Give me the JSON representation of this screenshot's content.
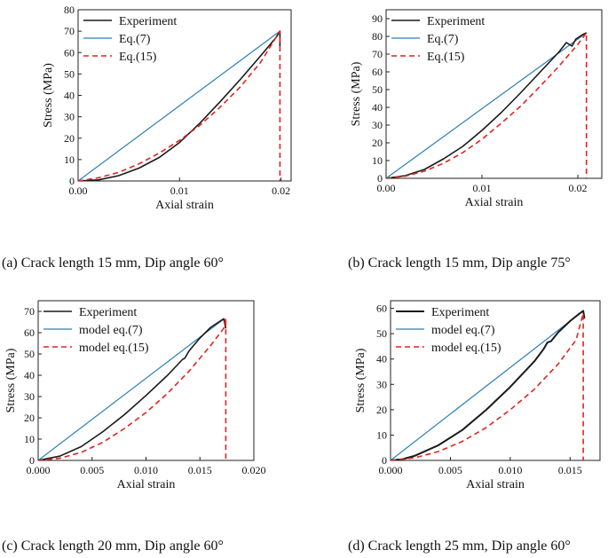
{
  "chart_data": [
    {
      "id": "a",
      "type": "line",
      "caption": "(a) Crack length 15 mm, Dip angle 60°",
      "xlabel": "Axial strain",
      "ylabel": "Stress (MPa)",
      "xlim": [
        0,
        0.021
      ],
      "ylim": [
        0,
        80
      ],
      "xticks": [
        0,
        0.01,
        0.02
      ],
      "xtick_labels": [
        "0.00",
        "0.01",
        "0.02"
      ],
      "yticks": [
        0,
        10,
        20,
        30,
        40,
        50,
        60,
        70,
        80
      ],
      "ytick_labels": [
        "0",
        "10",
        "20",
        "30",
        "40",
        "50",
        "60",
        "70",
        "80"
      ],
      "legend_position": "top-left",
      "series": [
        {
          "name": "Experiment",
          "color": "#1a1a1a",
          "style": "solid",
          "width": 1.6,
          "x": [
            0,
            0.002,
            0.004,
            0.006,
            0.008,
            0.01,
            0.012,
            0.014,
            0.016,
            0.018,
            0.0195,
            0.0199,
            0.0199
          ],
          "y": [
            0,
            0.5,
            2.5,
            6,
            11,
            18,
            27,
            37,
            47.5,
            58.5,
            67,
            70,
            63
          ]
        },
        {
          "name": "Eq.(7)",
          "color": "#2b7fb8",
          "style": "solid",
          "width": 1.2,
          "x": [
            0,
            0.0199
          ],
          "y": [
            0,
            70
          ]
        },
        {
          "name": "Eq.(15)",
          "color": "#e0241f",
          "style": "dashed",
          "width": 1.6,
          "x": [
            0,
            0.002,
            0.004,
            0.006,
            0.008,
            0.01,
            0.012,
            0.014,
            0.016,
            0.018,
            0.0199,
            0.0199
          ],
          "y": [
            0,
            1.5,
            4,
            8,
            13,
            19,
            26,
            34.5,
            44,
            55.5,
            70,
            0
          ]
        }
      ]
    },
    {
      "id": "b",
      "type": "line",
      "caption": "(b) Crack length 15 mm, Dip angle 75°",
      "xlabel": "Axial strain",
      "ylabel": "Stress (MPa)",
      "xlim": [
        0,
        0.0225
      ],
      "ylim": [
        0,
        95
      ],
      "xticks": [
        0,
        0.01,
        0.02
      ],
      "xtick_labels": [
        "0.00",
        "0.01",
        "0.02"
      ],
      "yticks": [
        0,
        10,
        20,
        30,
        40,
        50,
        60,
        70,
        80,
        90
      ],
      "ytick_labels": [
        "0",
        "10",
        "20",
        "30",
        "40",
        "50",
        "60",
        "70",
        "80",
        "90"
      ],
      "legend_position": "top-left",
      "series": [
        {
          "name": "Experiment",
          "color": "#1a1a1a",
          "style": "solid",
          "width": 1.6,
          "x": [
            0,
            0.002,
            0.004,
            0.006,
            0.008,
            0.01,
            0.012,
            0.014,
            0.016,
            0.018,
            0.0188,
            0.0194,
            0.0198,
            0.0205,
            0.0209
          ],
          "y": [
            0,
            1.5,
            5,
            11,
            18,
            27,
            37,
            48,
            59.5,
            71,
            76.5,
            74.5,
            78.5,
            81,
            82
          ]
        },
        {
          "name": "Eq.(7)",
          "color": "#2b7fb8",
          "style": "solid",
          "width": 1.2,
          "x": [
            0,
            0.0209
          ],
          "y": [
            0,
            82
          ]
        },
        {
          "name": "Eq.(15)",
          "color": "#e0241f",
          "style": "dashed",
          "width": 1.6,
          "x": [
            0,
            0.002,
            0.004,
            0.006,
            0.008,
            0.01,
            0.012,
            0.014,
            0.016,
            0.018,
            0.02,
            0.0209,
            0.0209
          ],
          "y": [
            0,
            1.2,
            4,
            8.5,
            14.5,
            22,
            31,
            40.5,
            51.5,
            63,
            75.5,
            82,
            0
          ]
        }
      ]
    },
    {
      "id": "c",
      "type": "line",
      "caption": "(c) Crack length 20 mm, Dip angle 60°",
      "xlabel": "Axial strain",
      "ylabel": "Stress (MPa)",
      "xlim": [
        0,
        0.02
      ],
      "ylim": [
        0,
        75
      ],
      "xticks": [
        0,
        0.005,
        0.01,
        0.015,
        0.02
      ],
      "xtick_labels": [
        "0.000",
        "0.005",
        "0.010",
        "0.015",
        "0.020"
      ],
      "yticks": [
        0,
        10,
        20,
        30,
        40,
        50,
        60,
        70
      ],
      "ytick_labels": [
        "0",
        "10",
        "20",
        "30",
        "40",
        "50",
        "60",
        "70"
      ],
      "legend_position": "top-left",
      "series": [
        {
          "name": "Experiment",
          "color": "#1a1a1a",
          "style": "solid",
          "width": 1.6,
          "x": [
            0,
            0.002,
            0.004,
            0.006,
            0.008,
            0.01,
            0.012,
            0.0134,
            0.0136,
            0.014,
            0.015,
            0.016,
            0.0169,
            0.0172,
            0.0174
          ],
          "y": [
            0,
            2,
            6.5,
            13.5,
            21.5,
            30.5,
            40,
            47.5,
            48,
            51.5,
            57.5,
            62.5,
            65.5,
            66.5,
            62
          ]
        },
        {
          "name": "model eq.(7)",
          "color": "#2b7fb8",
          "style": "solid",
          "width": 1.2,
          "x": [
            0,
            0.0171
          ],
          "y": [
            0,
            66
          ]
        },
        {
          "name": "model eq.(15)",
          "color": "#e0241f",
          "style": "dashed",
          "width": 1.6,
          "x": [
            0,
            0.002,
            0.004,
            0.006,
            0.008,
            0.01,
            0.012,
            0.014,
            0.016,
            0.0172,
            0.0174,
            0.0174
          ],
          "y": [
            0,
            1,
            3.8,
            8.5,
            15,
            22.5,
            31.5,
            42,
            54,
            62,
            67,
            0
          ]
        }
      ]
    },
    {
      "id": "d",
      "type": "line",
      "caption": "(d) Crack length 25 mm, Dip angle 60°",
      "xlabel": "Axial strain",
      "ylabel": "Stress (MPa)",
      "xlim": [
        0,
        0.0175
      ],
      "ylim": [
        0,
        63
      ],
      "xticks": [
        0,
        0.005,
        0.01,
        0.015
      ],
      "xtick_labels": [
        "0.000",
        "0.005",
        "0.010",
        "0.015"
      ],
      "yticks": [
        0,
        10,
        20,
        30,
        40,
        50,
        60
      ],
      "ytick_labels": [
        "0",
        "10",
        "20",
        "30",
        "40",
        "50",
        "60"
      ],
      "legend_position": "top-left",
      "series": [
        {
          "name": "Experiment",
          "color": "#1a1a1a",
          "style": "solid",
          "width": 2.0,
          "x": [
            0,
            0.001,
            0.002,
            0.004,
            0.006,
            0.008,
            0.01,
            0.012,
            0.0128,
            0.0131,
            0.0134,
            0.014,
            0.015,
            0.0158,
            0.0161,
            0.0162
          ],
          "y": [
            0,
            0.5,
            1.8,
            6,
            12,
            20,
            29,
            39,
            44,
            46.5,
            47,
            50.5,
            55,
            58,
            59,
            56
          ]
        },
        {
          "name": "model eq.(7)",
          "color": "#2b7fb8",
          "style": "solid",
          "width": 1.2,
          "x": [
            0,
            0.0161
          ],
          "y": [
            0,
            59
          ]
        },
        {
          "name": "model eq.(15)",
          "color": "#e0241f",
          "style": "dashed",
          "width": 1.6,
          "x": [
            0,
            0.002,
            0.004,
            0.006,
            0.008,
            0.01,
            0.012,
            0.014,
            0.0155,
            0.0161,
            0.0161
          ],
          "y": [
            0,
            1,
            3.5,
            7.5,
            13,
            20,
            28,
            38,
            47.5,
            58,
            0
          ]
        }
      ]
    }
  ]
}
